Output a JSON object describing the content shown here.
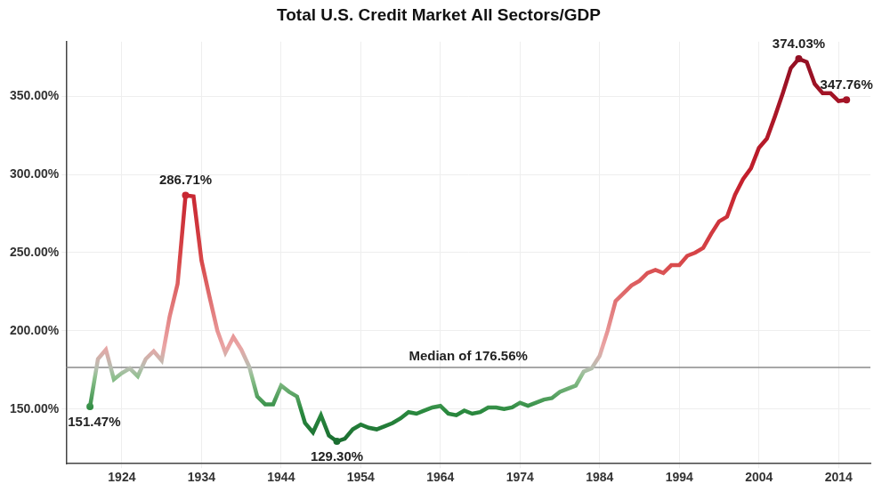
{
  "chart_data": {
    "type": "line",
    "title": "Total U.S. Credit Market All Sectors/GDP",
    "x": [
      1920,
      1921,
      1922,
      1923,
      1924,
      1925,
      1926,
      1927,
      1928,
      1929,
      1930,
      1931,
      1932,
      1933,
      1934,
      1935,
      1936,
      1937,
      1938,
      1939,
      1940,
      1941,
      1942,
      1943,
      1944,
      1945,
      1946,
      1947,
      1948,
      1949,
      1950,
      1951,
      1952,
      1953,
      1954,
      1955,
      1956,
      1957,
      1958,
      1959,
      1960,
      1961,
      1962,
      1963,
      1964,
      1965,
      1966,
      1967,
      1968,
      1969,
      1970,
      1971,
      1972,
      1973,
      1974,
      1975,
      1976,
      1977,
      1978,
      1979,
      1980,
      1981,
      1982,
      1983,
      1984,
      1985,
      1986,
      1987,
      1988,
      1989,
      1990,
      1991,
      1992,
      1993,
      1994,
      1995,
      1996,
      1997,
      1998,
      1999,
      2000,
      2001,
      2002,
      2003,
      2004,
      2005,
      2006,
      2007,
      2008,
      2009,
      2010,
      2011,
      2012,
      2013,
      2014,
      2015
    ],
    "values": [
      151.47,
      182,
      188,
      169,
      173,
      176,
      171,
      182,
      187,
      181,
      209,
      230,
      286.71,
      286,
      245,
      222,
      200,
      186,
      196,
      188,
      177,
      158,
      153,
      153,
      165,
      161,
      158,
      141,
      135,
      146,
      133,
      129.3,
      131,
      137,
      140,
      138,
      137,
      139,
      141,
      144,
      148,
      147,
      149,
      151,
      152,
      147,
      146,
      149,
      147,
      148,
      151,
      151,
      150,
      151,
      154,
      152,
      154,
      156,
      157,
      161,
      163,
      165,
      174,
      176,
      184,
      200,
      219,
      224,
      229,
      232,
      237,
      239,
      237,
      242,
      242,
      248,
      250,
      253,
      262,
      270,
      273,
      287,
      297,
      304,
      317,
      323,
      337,
      352,
      368,
      374.03,
      372,
      358,
      352,
      352,
      347,
      347.76
    ],
    "xlim": [
      1917,
      2018
    ],
    "xticks": [
      1924,
      1934,
      1944,
      1954,
      1964,
      1974,
      1984,
      1994,
      2004,
      2014
    ],
    "ylim": [
      115,
      385
    ],
    "yticks": [
      {
        "value": 150,
        "label": "150.00%"
      },
      {
        "value": 200,
        "label": "200.00%"
      },
      {
        "value": 250,
        "label": "250.00%"
      },
      {
        "value": 300,
        "label": "300.00%"
      },
      {
        "value": 350,
        "label": "350.00%"
      }
    ],
    "grid": true,
    "median": {
      "value": 176.56,
      "label": "Median of 176.56%"
    },
    "annotations": [
      {
        "x": 1920,
        "y": 151.47,
        "label": "151.47%"
      },
      {
        "x": 1932,
        "y": 286.71,
        "label": "286.71%"
      },
      {
        "x": 1951,
        "y": 129.3,
        "label": "129.30%"
      },
      {
        "x": 2009,
        "y": 374.03,
        "label": "374.03%"
      },
      {
        "x": 2015,
        "y": 347.76,
        "label": "347.76%"
      }
    ]
  }
}
